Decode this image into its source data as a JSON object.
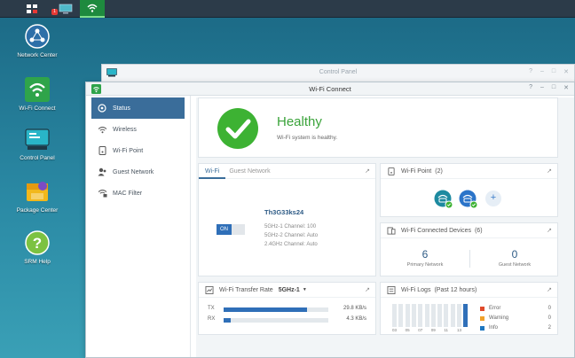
{
  "desktop": {
    "icons": [
      {
        "label": "Network Center"
      },
      {
        "label": "Wi-Fi Connect"
      },
      {
        "label": "Control Panel"
      },
      {
        "label": "Package Center"
      },
      {
        "label": "SRM Help"
      }
    ]
  },
  "taskbar": {
    "badge": "1"
  },
  "back_window": {
    "title": "Control Panel"
  },
  "window": {
    "title": "Wi-Fi Connect"
  },
  "sidebar": {
    "items": [
      {
        "label": "Status",
        "icon": "status-icon"
      },
      {
        "label": "Wireless",
        "icon": "wifi-icon"
      },
      {
        "label": "Wi-Fi Point",
        "icon": "wifi-point-icon"
      },
      {
        "label": "Guest Network",
        "icon": "guest-icon"
      },
      {
        "label": "MAC Filter",
        "icon": "mac-filter-icon"
      }
    ]
  },
  "health": {
    "title": "Healthy",
    "subtitle": "Wi-Fi system is healthy.",
    "color": "#3db233"
  },
  "wifi_card": {
    "tabs": [
      "Wi-Fi",
      "Guest Network"
    ],
    "ssid": "Th3G33ks24",
    "toggle": "ON",
    "details": [
      "5GHz-1 Channel: 100",
      "5GHz-2 Channel: Auto",
      "2.4GHz Channel: Auto"
    ]
  },
  "wifi_point": {
    "title": "Wi-Fi Point",
    "count": "(2)"
  },
  "devices": {
    "title": "Wi-Fi Connected Devices",
    "count": "(6)",
    "primary_value": "6",
    "primary_label": "Primary Network",
    "guest_value": "0",
    "guest_label": "Guest Network"
  },
  "transfer": {
    "title": "Wi-Fi Transfer Rate",
    "band": "5GHz-1",
    "rows": [
      {
        "label": "TX",
        "value": "29.8 KB/s",
        "fill": 0.8
      },
      {
        "label": "RX",
        "value": "4.3 KB/s",
        "fill": 0.07
      }
    ]
  },
  "logs": {
    "title": "Wi-Fi Logs",
    "period": "(Past 12 hours)",
    "x_labels": [
      "03",
      "05",
      "07",
      "09",
      "11",
      "13"
    ],
    "legend": [
      {
        "label": "Error",
        "value": "0",
        "color": "#e04a2b"
      },
      {
        "label": "Warning",
        "value": "0",
        "color": "#f0a12a"
      },
      {
        "label": "Info",
        "value": "2",
        "color": "#1e77c0"
      }
    ]
  }
}
